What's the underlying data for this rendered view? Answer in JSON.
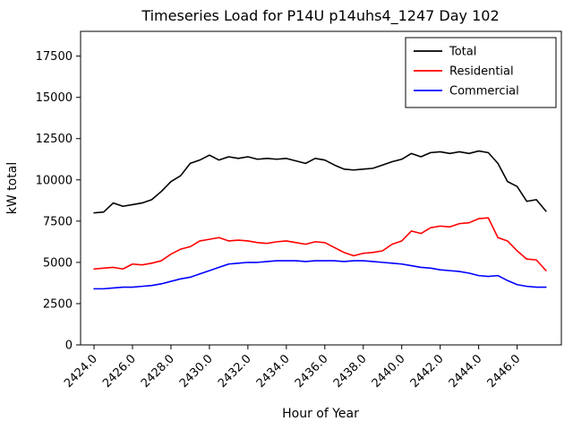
{
  "chart_data": {
    "type": "line",
    "title": "Timeseries Load for P14U p14uhs4_1247  Day 102",
    "xlabel": "Hour of Year",
    "ylabel": "kW total",
    "xlim": [
      2423.3,
      2448.3
    ],
    "ylim": [
      0,
      19000
    ],
    "xticks": [
      2424.0,
      2426.0,
      2428.0,
      2430.0,
      2432.0,
      2434.0,
      2436.0,
      2438.0,
      2440.0,
      2442.0,
      2444.0,
      2446.0
    ],
    "yticks": [
      0,
      2500,
      5000,
      7500,
      10000,
      12500,
      15000,
      17500
    ],
    "grid": false,
    "legend_position": "upper right",
    "x": [
      2424.0,
      2424.5,
      2425.0,
      2425.5,
      2426.0,
      2426.5,
      2427.0,
      2427.5,
      2428.0,
      2428.5,
      2429.0,
      2429.5,
      2430.0,
      2430.5,
      2431.0,
      2431.5,
      2432.0,
      2432.5,
      2433.0,
      2433.5,
      2434.0,
      2434.5,
      2435.0,
      2435.5,
      2436.0,
      2436.5,
      2437.0,
      2437.5,
      2438.0,
      2438.5,
      2439.0,
      2439.5,
      2440.0,
      2440.5,
      2441.0,
      2441.5,
      2442.0,
      2442.5,
      2443.0,
      2443.5,
      2444.0,
      2444.5,
      2445.0,
      2445.5,
      2446.0,
      2446.5,
      2447.0,
      2447.5
    ],
    "series": [
      {
        "name": "Total",
        "color": "#000000",
        "values": [
          8000,
          8050,
          8600,
          8400,
          8500,
          8600,
          8800,
          9300,
          9900,
          10250,
          11000,
          11200,
          11500,
          11200,
          11400,
          11300,
          11400,
          11250,
          11300,
          11250,
          11300,
          11150,
          11000,
          11300,
          11200,
          10900,
          10650,
          10600,
          10650,
          10700,
          10900,
          11100,
          11250,
          11600,
          11400,
          11650,
          11700,
          11600,
          11700,
          11600,
          11750,
          11650,
          11000,
          9900,
          9600,
          8700,
          8800,
          8100
        ]
      },
      {
        "name": "Residential",
        "color": "#ff0000",
        "values": [
          4600,
          4650,
          4700,
          4600,
          4900,
          4850,
          4950,
          5100,
          5500,
          5800,
          5950,
          6300,
          6400,
          6500,
          6300,
          6350,
          6300,
          6200,
          6150,
          6250,
          6300,
          6200,
          6100,
          6250,
          6200,
          5900,
          5600,
          5400,
          5550,
          5600,
          5700,
          6100,
          6300,
          6900,
          6750,
          7100,
          7200,
          7150,
          7350,
          7400,
          7650,
          7700,
          6500,
          6300,
          5700,
          5200,
          5150,
          4500
        ]
      },
      {
        "name": "Commercial",
        "color": "#0000ff",
        "values": [
          3400,
          3400,
          3450,
          3500,
          3500,
          3550,
          3600,
          3700,
          3850,
          4000,
          4100,
          4300,
          4500,
          4700,
          4900,
          4950,
          5000,
          5000,
          5050,
          5100,
          5100,
          5100,
          5050,
          5100,
          5100,
          5100,
          5050,
          5100,
          5100,
          5050,
          5000,
          4950,
          4900,
          4800,
          4700,
          4650,
          4550,
          4500,
          4450,
          4350,
          4200,
          4150,
          4200,
          3900,
          3650,
          3550,
          3500,
          3500
        ]
      }
    ]
  }
}
